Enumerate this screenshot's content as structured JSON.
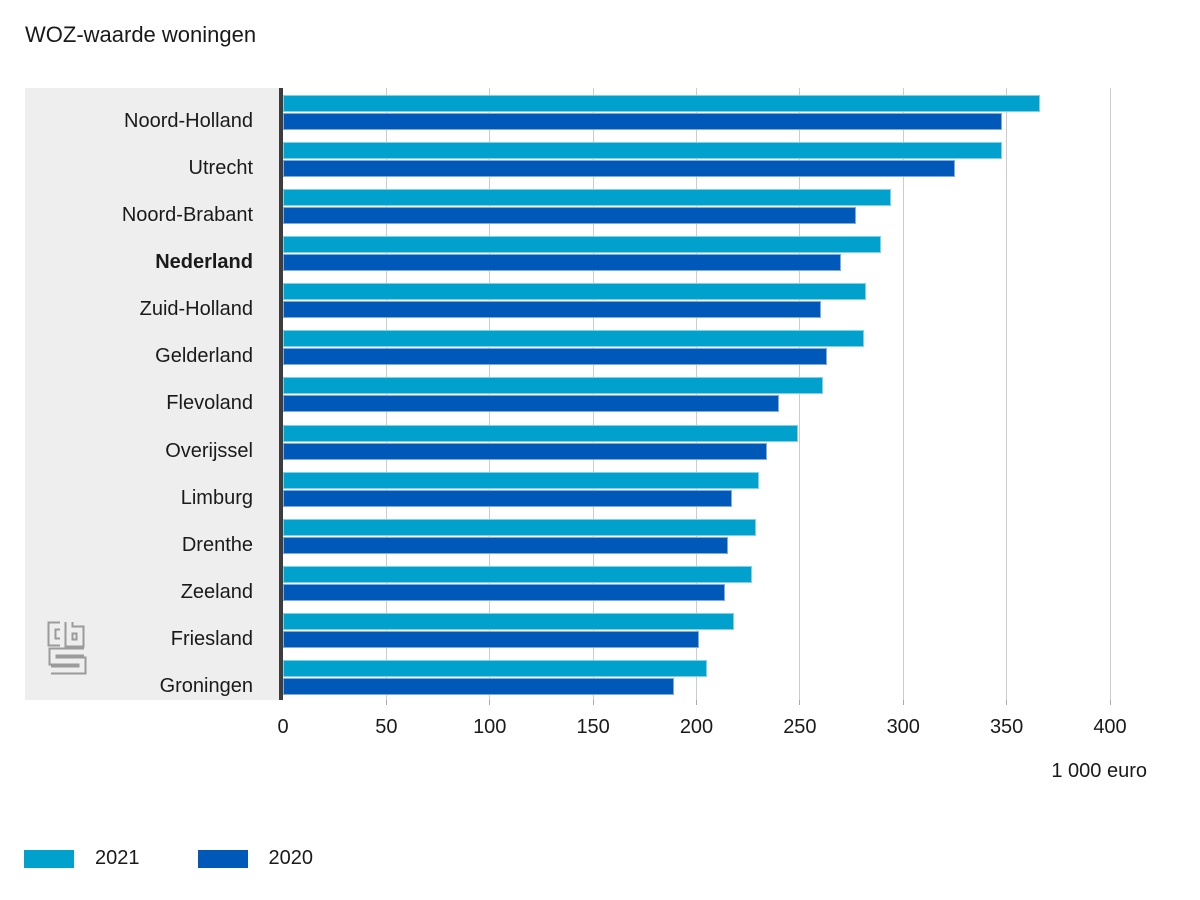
{
  "chart_data": {
    "type": "bar",
    "orientation": "horizontal",
    "title": "WOZ-waarde woningen",
    "xlabel": "1 000 euro",
    "categories": [
      "Noord-Holland",
      "Utrecht",
      "Noord-Brabant",
      "Nederland",
      "Zuid-Holland",
      "Gelderland",
      "Flevoland",
      "Overijssel",
      "Limburg",
      "Drenthe",
      "Zeeland",
      "Friesland",
      "Groningen"
    ],
    "emphasized_category": "Nederland",
    "series": [
      {
        "name": "2021",
        "color": "#00a1cd",
        "values": [
          366,
          348,
          294,
          289,
          282,
          281,
          261,
          249,
          230,
          229,
          227,
          218,
          205
        ]
      },
      {
        "name": "2020",
        "color": "#0058b8",
        "values": [
          348,
          325,
          277,
          270,
          260,
          263,
          240,
          234,
          217,
          215,
          214,
          201,
          189
        ]
      }
    ],
    "x_ticks": [
      0,
      50,
      100,
      150,
      200,
      250,
      300,
      350,
      400
    ],
    "xlim": [
      0,
      412
    ],
    "grid": true,
    "legend": {
      "position": "bottom-left"
    }
  },
  "colors": {
    "panel_background": "#eeeeee",
    "axis_line": "#3d3d3d",
    "gridline": "#cccccc",
    "text": "#1a1a1a",
    "logo": "#9b9b9b"
  },
  "logo": {
    "name": "cbs-logo"
  }
}
